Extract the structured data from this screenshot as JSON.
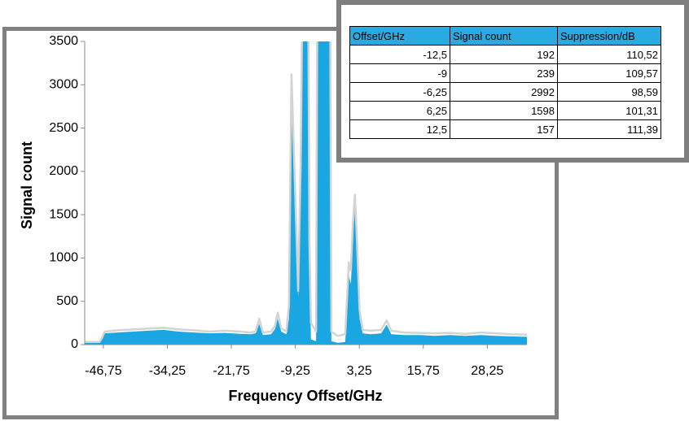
{
  "chart_data": {
    "type": "area",
    "x_label": "Frequency Offset/GHz",
    "y_label": "Signal count",
    "x": [
      -50.4,
      -47.5,
      -47,
      -46.5,
      -44,
      -41,
      -38,
      -35,
      -32,
      -29,
      -26,
      -23,
      -20,
      -18,
      -17,
      -16.3,
      -15.6,
      -14,
      -13.2,
      -12.7,
      -12,
      -11,
      -10.5,
      -10,
      -9.3,
      -8.7,
      -8.2,
      -7.7,
      -6.8,
      -6.5,
      -6.2,
      -5.2,
      -4.9,
      -2.5,
      -2.2,
      -1,
      0.5,
      1.2,
      1.6,
      2,
      2.4,
      2.8,
      3.3,
      3.9,
      5.5,
      7.5,
      8.6,
      9.5,
      12,
      15,
      18,
      21,
      24,
      27,
      30,
      33,
      36
    ],
    "series": [
      {
        "color": "#1aa7e1",
        "values": [
          20,
          20,
          60,
          130,
          140,
          150,
          160,
          170,
          150,
          140,
          130,
          135,
          125,
          120,
          130,
          240,
          110,
          120,
          180,
          300,
          150,
          120,
          300,
          2800,
          1500,
          550,
          1800,
          5000,
          5000,
          1000,
          60,
          40,
          5000,
          5000,
          40,
          20,
          30,
          800,
          700,
          1200,
          1650,
          1000,
          300,
          130,
          120,
          130,
          230,
          120,
          110,
          110,
          100,
          110,
          100,
          110,
          100,
          95,
          90
        ]
      },
      {
        "color": "#d3d3d3",
        "values": [
          30,
          30,
          80,
          150,
          165,
          175,
          185,
          195,
          175,
          165,
          150,
          160,
          150,
          140,
          150,
          300,
          140,
          150,
          220,
          370,
          190,
          150,
          450,
          3120,
          1800,
          620,
          2100,
          5000,
          5000,
          1200,
          250,
          150,
          5000,
          5000,
          150,
          100,
          120,
          950,
          850,
          1400,
          1730,
          1200,
          400,
          170,
          160,
          170,
          280,
          160,
          140,
          135,
          130,
          135,
          125,
          140,
          130,
          120,
          115
        ]
      }
    ],
    "xlim": [
      -50.4,
      36
    ],
    "ylim": [
      0,
      3500
    ],
    "xticks": [
      {
        "value": -46.75,
        "label": "-46,75"
      },
      {
        "value": -34.25,
        "label": "-34,25"
      },
      {
        "value": -21.75,
        "label": "-21,75"
      },
      {
        "value": -9.25,
        "label": "-9,25"
      },
      {
        "value": 3.25,
        "label": "3,25"
      },
      {
        "value": 15.75,
        "label": "15,75"
      },
      {
        "value": 28.25,
        "label": "28,25"
      }
    ],
    "yticks": [
      0,
      500,
      1000,
      1500,
      2000,
      2500,
      3000,
      3500
    ]
  },
  "table": {
    "header": [
      "Offset/GHz",
      "Signal count",
      "Suppression/dB"
    ],
    "rows": [
      [
        "-12,5",
        "192",
        "110,52"
      ],
      [
        "-9",
        "239",
        "109,57"
      ],
      [
        "-6,25",
        "2992",
        "98,59"
      ],
      [
        "6,25",
        "1598",
        "101,31"
      ],
      [
        "12,5",
        "157",
        "111,39"
      ]
    ]
  }
}
